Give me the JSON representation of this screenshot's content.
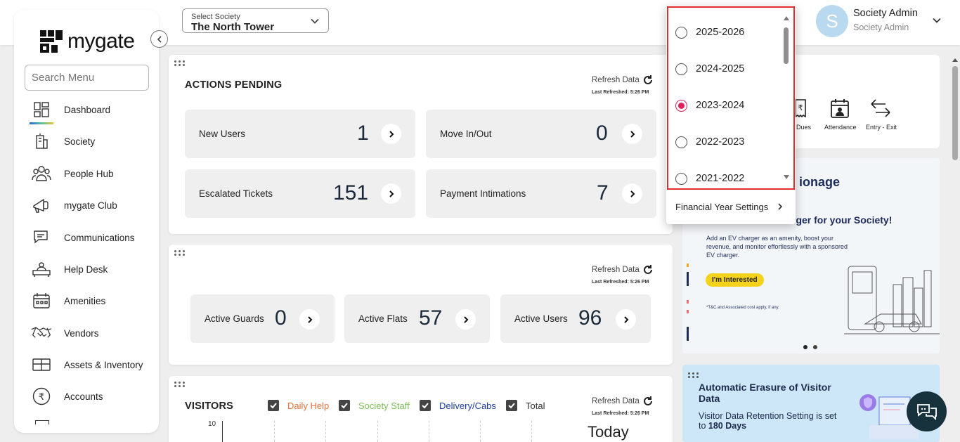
{
  "brand": {
    "name": "mygate"
  },
  "header": {
    "society_select": {
      "label": "Select Society",
      "value": "The North Tower"
    },
    "user": {
      "initial": "S",
      "name": "Society Admin",
      "role": "Society Admin"
    }
  },
  "sidebar": {
    "search_placeholder": "Search Menu",
    "items": [
      {
        "label": "Dashboard",
        "icon": "dashboard-icon"
      },
      {
        "label": "Society",
        "icon": "building-icon"
      },
      {
        "label": "People Hub",
        "icon": "people-icon"
      },
      {
        "label": "mygate Club",
        "icon": "megaphone-icon"
      },
      {
        "label": "Communications",
        "icon": "chat-icon"
      },
      {
        "label": "Help Desk",
        "icon": "helpdesk-icon"
      },
      {
        "label": "Amenities",
        "icon": "calendar-icon"
      },
      {
        "label": "Vendors",
        "icon": "handshake-icon"
      },
      {
        "label": "Assets & Inventory",
        "icon": "box-icon"
      },
      {
        "label": "Accounts",
        "icon": "rupee-icon"
      }
    ]
  },
  "actions_pending": {
    "title": "ACTIONS PENDING",
    "refresh_label": "Refresh Data",
    "last_refreshed": "Last Refreshed: 5:26 PM",
    "stats": [
      {
        "label": "New Users",
        "value": "1"
      },
      {
        "label": "Move In/Out",
        "value": "0"
      },
      {
        "label": "Escalated Tickets",
        "value": "151"
      },
      {
        "label": "Payment Intimations",
        "value": "7"
      }
    ]
  },
  "overview": {
    "refresh_label": "Refresh Data",
    "last_refreshed": "Last Refreshed: 5:26 PM",
    "stats": [
      {
        "label": "Active Guards",
        "value": "0"
      },
      {
        "label": "Active Flats",
        "value": "57"
      },
      {
        "label": "Active Users",
        "value": "96"
      }
    ]
  },
  "visitors": {
    "title": "VISITORS",
    "refresh_label": "Refresh Data",
    "last_refreshed": "Last Refreshed: 5:26 PM",
    "filters": [
      {
        "label": "Daily Help",
        "color": "#e8703a"
      },
      {
        "label": "Society Staff",
        "color": "#7cbf5a"
      },
      {
        "label": "Delivery/Cabs",
        "color": "#1e3fa0"
      },
      {
        "label": "Total",
        "color": "#333333"
      }
    ],
    "y_tick": "10",
    "period": "Today"
  },
  "quick_actions": [
    {
      "label": "Dues",
      "icon": "invoice-icon"
    },
    {
      "label": "Attendance",
      "icon": "attendance-icon"
    },
    {
      "label": "Entry - Exit",
      "icon": "entry-exit-icon"
    }
  ],
  "banner": {
    "title_fragment": "ionage",
    "headline_fragment": "rger for your Society!",
    "body": "Add an EV charger as an amenity, boost your revenue, and monitor effortlessly with a sponsored EV charger.",
    "cta": "I'm Interested",
    "footnote": "*T&C and Associated cost apply, if any."
  },
  "info_card": {
    "title": "Automatic Erasure of Visitor Data",
    "body_prefix": "Visitor Data Retention Setting is set to ",
    "body_value": "180 Days"
  },
  "financial_year_popup": {
    "options": [
      {
        "label": "2025-2026",
        "selected": false
      },
      {
        "label": "2024-2025",
        "selected": false
      },
      {
        "label": "2023-2024",
        "selected": true
      },
      {
        "label": "2022-2023",
        "selected": false
      },
      {
        "label": "2021-2022",
        "selected": false
      }
    ],
    "settings_label": "Financial Year Settings",
    "accent": "#e0205a",
    "highlight_border": "#e52b2b"
  }
}
